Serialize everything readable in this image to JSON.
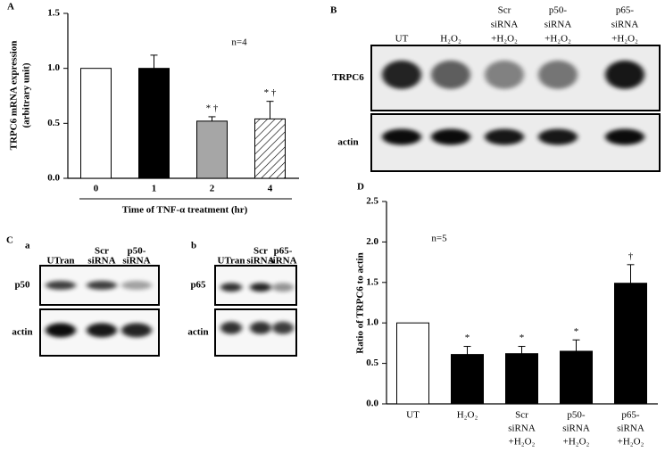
{
  "chart_data": [
    {
      "type": "bar",
      "panel": "A",
      "ylabel": [
        "TRPC6 mRNA expression",
        "(arbitrary unit)"
      ],
      "xlabel": "Time of TNF-α treatment (hr)",
      "annotation": "n=4",
      "categories": [
        "0",
        "1",
        "2",
        "4"
      ],
      "values": [
        1.0,
        1.0,
        0.52,
        0.54
      ],
      "errors": [
        null,
        0.12,
        0.04,
        0.16
      ],
      "significance": [
        null,
        null,
        "* †",
        "* †"
      ],
      "colors": [
        "#ffffff",
        "#000000",
        "#a6a6a6",
        "#ffffff"
      ],
      "hatch": [
        false,
        false,
        false,
        true
      ],
      "ylim": [
        0,
        1.5
      ],
      "yticks": [
        {
          "value": 0,
          "label": "0.0"
        },
        {
          "value": 0.5,
          "label": "0.5"
        },
        {
          "value": 1,
          "label": "1.0"
        },
        {
          "value": 1.5,
          "label": "1.5"
        }
      ]
    },
    {
      "type": "bar",
      "panel": "D",
      "ylabel": [
        "Ratio of TRPC6 to actin"
      ],
      "annotation": "n=5",
      "categories": [
        [
          "UT"
        ],
        [
          "H₂O₂"
        ],
        [
          "Scr",
          "siRNA",
          "+H₂O₂"
        ],
        [
          "p50-",
          "siRNA",
          "+H₂O₂"
        ],
        [
          "p65-",
          "siRNA",
          "+H₂O₂"
        ]
      ],
      "values": [
        1.0,
        0.61,
        0.62,
        0.65,
        1.49
      ],
      "errors": [
        null,
        0.1,
        0.09,
        0.14,
        0.23
      ],
      "significance": [
        null,
        "*",
        "*",
        "*",
        "†"
      ],
      "colors": [
        "#ffffff",
        "#000000",
        "#000000",
        "#000000",
        "#000000"
      ],
      "hatch": [
        false,
        false,
        false,
        false,
        false
      ],
      "ylim": [
        0,
        2.5
      ],
      "yticks": [
        {
          "value": 0,
          "label": "0.0"
        },
        {
          "value": 0.5,
          "label": "0.5"
        },
        {
          "value": 1,
          "label": "1.0"
        },
        {
          "value": 1.5,
          "label": "1.5"
        },
        {
          "value": 2,
          "label": "2.0"
        },
        {
          "value": 2.5,
          "label": "2.5"
        }
      ]
    }
  ],
  "blots": [
    {
      "panel": "B",
      "lanes": [
        [
          "UT"
        ],
        [
          "H₂O₂"
        ],
        [
          "Scr",
          "siRNA",
          "+H₂O₂"
        ],
        [
          "p50-",
          "siRNA",
          "+H₂O₂"
        ],
        [
          "p65-",
          "siRNA",
          "+H₂O₂"
        ]
      ],
      "rows": [
        "TRPC6",
        "actin"
      ]
    },
    {
      "panel": "C",
      "sub": "a",
      "lanes": [
        [
          "UTran"
        ],
        [
          "Scr",
          "siRNA"
        ],
        [
          "p50-",
          "siRNA"
        ]
      ],
      "rows": [
        "p50",
        "actin"
      ]
    },
    {
      "sub": "b",
      "lanes": [
        [
          "UTran"
        ],
        [
          "Scr",
          "siRNA"
        ],
        [
          "p65-",
          "siRNA"
        ]
      ],
      "rows": [
        "p65",
        "actin"
      ]
    }
  ]
}
